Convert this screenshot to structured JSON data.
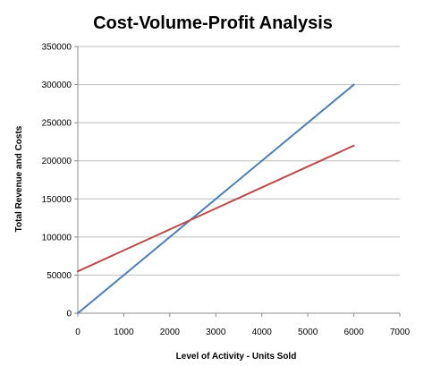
{
  "chart_data": {
    "type": "line",
    "title": "Cost-Volume-Profit Analysis",
    "xlabel": "Level of Activity - Units Sold",
    "ylabel": "Total Revenue and Costs",
    "xlim": [
      0,
      7000
    ],
    "ylim": [
      0,
      350000
    ],
    "x_ticks": [
      0,
      1000,
      2000,
      3000,
      4000,
      5000,
      6000,
      7000
    ],
    "y_ticks": [
      0,
      50000,
      100000,
      150000,
      200000,
      250000,
      300000,
      350000
    ],
    "grid": "horizontal",
    "legend": "none",
    "series": [
      {
        "color": "#4a7ebb",
        "x": [
          0,
          6000
        ],
        "y": [
          0,
          300000
        ]
      },
      {
        "color": "#be4b48",
        "x": [
          0,
          6000
        ],
        "y": [
          55000,
          220000
        ]
      }
    ]
  }
}
